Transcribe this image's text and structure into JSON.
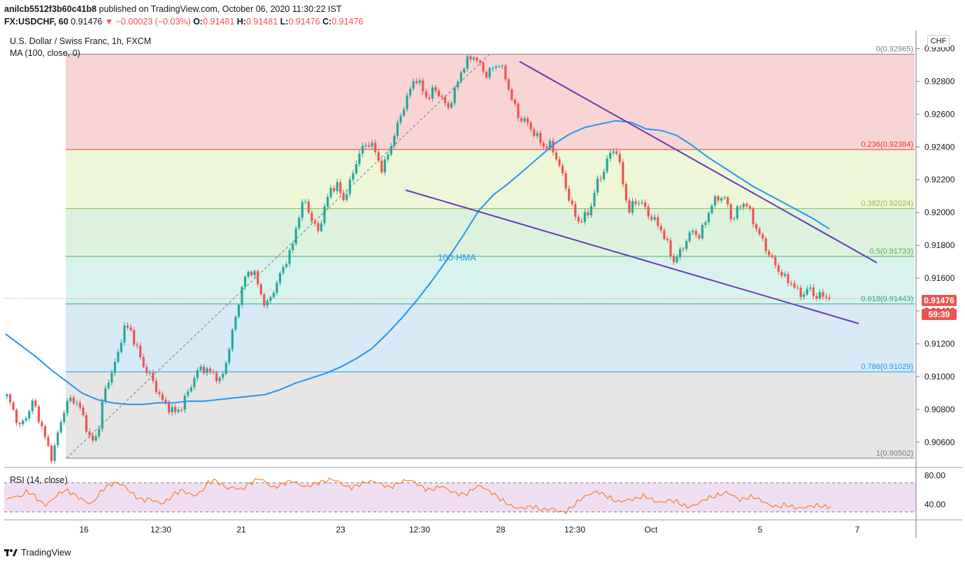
{
  "header": {
    "author": "anilcb5512f3b60c41b8",
    "published": "published on TradingView.com, October 06, 2020 11:30:22 IST",
    "symbol": "FX:USDCHF, 60",
    "price": "0.91476",
    "change": "▼ −0.00023 (−0.03%)",
    "o_label": "O:",
    "o_value": "0.91481",
    "h_label": "H:",
    "h_value": "0.91481",
    "l_label": "L:",
    "l_value": "0.91476",
    "c_label": "C:",
    "c_value": "0.91476"
  },
  "legend": {
    "title": "U.S. Dollar / Swiss Franc, 1h, FXCM",
    "ma": "MA (100, close, 0)",
    "rsi": "RSI (14, close)"
  },
  "currency_box": "CHF",
  "last_price_badge": "0.91476",
  "countdown_badge": "59:39",
  "footer": {
    "brand": "TradingView"
  },
  "colors": {
    "up": "#26a69a",
    "down": "#ef5350",
    "ma": "#2196f3",
    "trendline": "#673ab7",
    "rsi": "#ff6d00",
    "rsi_band": "#e1bee7"
  },
  "chart_data": {
    "type": "candlestick",
    "symbol": "USDCHF",
    "timeframe": "1h",
    "price_axis": {
      "ticks": [
        "0.93000",
        "0.92800",
        "0.92600",
        "0.92400",
        "0.92200",
        "0.92000",
        "0.91800",
        "0.91600",
        "0.91400",
        "0.91200",
        "0.91000",
        "0.90800",
        "0.90600"
      ],
      "ylim": [
        0.9045,
        0.931
      ]
    },
    "time_axis": {
      "ticks": [
        "16",
        "12:30",
        "21",
        "23",
        "12:30",
        "28",
        "12:30",
        "Oct",
        "5",
        "7"
      ]
    },
    "fibonacci": [
      {
        "level": "0",
        "price": 0.92965,
        "label": "0(0.92965)"
      },
      {
        "level": "0.236",
        "price": 0.92384,
        "label": "0.236(0.92384)"
      },
      {
        "level": "0.382",
        "price": 0.92024,
        "label": "0.382(0.92024)"
      },
      {
        "level": "0.5",
        "price": 0.91733,
        "label": "0.5(0.91733)"
      },
      {
        "level": "0.618",
        "price": 0.91443,
        "label": "0.618(0.91443)"
      },
      {
        "level": "0.786",
        "price": 0.91029,
        "label": "0.786(0.91029)"
      },
      {
        "level": "1",
        "price": 0.90502,
        "label": "1(0.90502)"
      }
    ],
    "annotations": [
      {
        "text": "100-HMA"
      }
    ],
    "price_path": [
      0.9088,
      0.9079,
      0.9069,
      0.9076,
      0.9085,
      0.9074,
      0.9061,
      0.905,
      0.9068,
      0.9082,
      0.9087,
      0.9083,
      0.9073,
      0.9059,
      0.9065,
      0.909,
      0.9101,
      0.9111,
      0.913,
      0.9129,
      0.9118,
      0.9107,
      0.9101,
      0.9093,
      0.9085,
      0.9081,
      0.9078,
      0.9082,
      0.9091,
      0.91,
      0.9106,
      0.9103,
      0.9102,
      0.9096,
      0.9112,
      0.913,
      0.915,
      0.9163,
      0.9165,
      0.9153,
      0.9142,
      0.9151,
      0.916,
      0.917,
      0.9178,
      0.9198,
      0.9208,
      0.9196,
      0.9188,
      0.9202,
      0.9215,
      0.9216,
      0.9208,
      0.9218,
      0.9232,
      0.924,
      0.9243,
      0.9236,
      0.9225,
      0.9238,
      0.9249,
      0.9262,
      0.9272,
      0.9283,
      0.9276,
      0.9269,
      0.9276,
      0.9271,
      0.9263,
      0.9272,
      0.9285,
      0.9292,
      0.9296,
      0.929,
      0.9284,
      0.9288,
      0.9291,
      0.9282,
      0.9269,
      0.9258,
      0.9256,
      0.9251,
      0.9245,
      0.924,
      0.9241,
      0.9232,
      0.922,
      0.9206,
      0.9195,
      0.9196,
      0.9201,
      0.9217,
      0.9224,
      0.9235,
      0.924,
      0.9221,
      0.92,
      0.9207,
      0.9206,
      0.9199,
      0.9195,
      0.919,
      0.918,
      0.917,
      0.9176,
      0.9184,
      0.9189,
      0.9185,
      0.9197,
      0.9206,
      0.921,
      0.9208,
      0.9195,
      0.9203,
      0.9207,
      0.9197,
      0.9188,
      0.918,
      0.9172,
      0.9166,
      0.916,
      0.9158,
      0.9152,
      0.915,
      0.9154,
      0.9148,
      0.915,
      0.91476
    ],
    "ma100_path": [
      0.9126,
      0.9119,
      0.9112,
      0.9104,
      0.9097,
      0.909,
      0.9086,
      0.9084,
      0.9083,
      0.9083,
      0.9084,
      0.9084,
      0.9085,
      0.9085,
      0.9086,
      0.9087,
      0.9088,
      0.9089,
      0.9092,
      0.9096,
      0.9099,
      0.9102,
      0.9106,
      0.9111,
      0.9117,
      0.9126,
      0.9136,
      0.9147,
      0.9159,
      0.9172,
      0.9186,
      0.9201,
      0.9211,
      0.9218,
      0.9226,
      0.9234,
      0.9242,
      0.9248,
      0.9252,
      0.9254,
      0.9256,
      0.9255,
      0.9251,
      0.925,
      0.9247,
      0.9241,
      0.9234,
      0.9228,
      0.9222,
      0.9216,
      0.9211,
      0.9206,
      0.9201,
      0.9196,
      0.919
    ],
    "rsi": {
      "ticks": [
        "80.00",
        "40.00"
      ],
      "bands": [
        70,
        30
      ],
      "ylim": [
        22,
        88
      ],
      "values": [
        46,
        52,
        50,
        58,
        54,
        45,
        39,
        47,
        55,
        60,
        56,
        50,
        45,
        40,
        52,
        63,
        68,
        70,
        66,
        58,
        50,
        46,
        48,
        44,
        41,
        48,
        56,
        60,
        55,
        52,
        58,
        70,
        74,
        68,
        62,
        64,
        60,
        66,
        72,
        76,
        70,
        63,
        66,
        70,
        73,
        68,
        64,
        67,
        70,
        72,
        75,
        72,
        66,
        63,
        66,
        70,
        72,
        71,
        67,
        63,
        68,
        72,
        74,
        70,
        64,
        60,
        62,
        66,
        60,
        56,
        54,
        55,
        63,
        66,
        60,
        55,
        48,
        42,
        37,
        35,
        36,
        38,
        34,
        33,
        35,
        31,
        29,
        36,
        44,
        51,
        55,
        58,
        54,
        49,
        44,
        45,
        47,
        48,
        52,
        49,
        44,
        43,
        46,
        45,
        40,
        37,
        39,
        44,
        49,
        51,
        54,
        57,
        52,
        46,
        49,
        51,
        47,
        42,
        38,
        37,
        40,
        37,
        35,
        36,
        38,
        39,
        37,
        37
      ]
    }
  }
}
